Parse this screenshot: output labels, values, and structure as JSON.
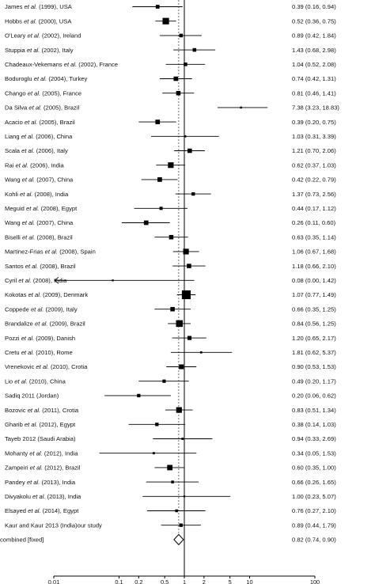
{
  "chart_data": {
    "type": "forest",
    "x_scale": "log",
    "xlim": [
      0.01,
      100
    ],
    "x_ticks": [
      {
        "value": 0.01,
        "label": "0.01"
      },
      {
        "value": 0.1,
        "label": "0.1"
      },
      {
        "value": 0.2,
        "label": "0.2"
      },
      {
        "value": 0.5,
        "label": "0.5"
      },
      {
        "value": 1,
        "label": "1"
      },
      {
        "value": 2,
        "label": "2"
      },
      {
        "value": 5,
        "label": "5"
      },
      {
        "value": 10,
        "label": "10"
      },
      {
        "value": 100,
        "label": "100"
      }
    ],
    "reference_line": 1,
    "studies": [
      {
        "label_parts": [
          "James ",
          "et al.",
          " (1999), USA"
        ],
        "or": 0.39,
        "lo": 0.16,
        "hi": 0.94,
        "text": "0.39 (0.16, 0.94)",
        "weight": 2.2
      },
      {
        "label_parts": [
          "Hobbs ",
          "et al.",
          " (2000), USA"
        ],
        "or": 0.52,
        "lo": 0.36,
        "hi": 0.75,
        "text": "0.52 (0.36, 0.75)",
        "weight": 6.5
      },
      {
        "label_parts": [
          "O'Leary ",
          "et al.",
          " (2002), Ireland"
        ],
        "or": 0.89,
        "lo": 0.42,
        "hi": 1.84,
        "text": "0.89 (0.42, 1.84)",
        "weight": 2.0
      },
      {
        "label_parts": [
          "Stuppia ",
          "et al.",
          " (2002), Italy"
        ],
        "or": 1.43,
        "lo": 0.68,
        "hi": 2.98,
        "text": "1.43 (0.68, 2.98)",
        "weight": 2.0
      },
      {
        "label_parts": [
          "Chadeaux-Vekemans ",
          "et al.",
          " (2002), France"
        ],
        "or": 1.04,
        "lo": 0.52,
        "hi": 2.08,
        "text": "1.04 (0.52, 2.08)",
        "weight": 2.0
      },
      {
        "label_parts": [
          "Boduroglu ",
          "et al.",
          " (2004), Turkey"
        ],
        "or": 0.74,
        "lo": 0.42,
        "hi": 1.31,
        "text": "0.74 (0.42, 1.31)",
        "weight": 3.0
      },
      {
        "label_parts": [
          "Chango ",
          "et al.",
          " (2005), France"
        ],
        "or": 0.81,
        "lo": 0.46,
        "hi": 1.41,
        "text": "0.81 (0.46, 1.41)",
        "weight": 3.0
      },
      {
        "label_parts": [
          "Da Silva ",
          "et al.",
          " (2005), Brazil"
        ],
        "or": 7.38,
        "lo": 3.23,
        "hi": 18.83,
        "text": "7.38 (3.23, 18.83)",
        "weight": 0.6
      },
      {
        "label_parts": [
          "Acacio ",
          "et al.",
          " (2005), Brazil"
        ],
        "or": 0.39,
        "lo": 0.2,
        "hi": 0.75,
        "text": "0.39 (0.20, 0.75)",
        "weight": 3.2
      },
      {
        "label_parts": [
          "Liang ",
          "et al.",
          " (2006), China"
        ],
        "or": 1.03,
        "lo": 0.31,
        "hi": 3.39,
        "text": "1.03 (0.31, 3.39)",
        "weight": 0.7
      },
      {
        "label_parts": [
          "Scala ",
          "et al.",
          " (2006), Italy"
        ],
        "or": 1.21,
        "lo": 0.7,
        "hi": 2.06,
        "text": "1.21 (0.70, 2.06)",
        "weight": 3.0
      },
      {
        "label_parts": [
          "Rai ",
          "et al.",
          " (2006), India"
        ],
        "or": 0.62,
        "lo": 0.37,
        "hi": 1.03,
        "text": "0.62 (0.37, 1.03)",
        "weight": 5.0
      },
      {
        "label_parts": [
          "Wang ",
          "et al.",
          " (2007), China"
        ],
        "or": 0.42,
        "lo": 0.22,
        "hi": 0.79,
        "text": "0.42 (0.22, 0.79)",
        "weight": 3.2
      },
      {
        "label_parts": [
          "Kohli ",
          "et al.",
          " (2008), India"
        ],
        "or": 1.37,
        "lo": 0.73,
        "hi": 2.56,
        "text": "1.37 (0.73, 2.56)",
        "weight": 1.8
      },
      {
        "label_parts": [
          "Meguid ",
          "et al.",
          " (2008), Egypt"
        ],
        "or": 0.44,
        "lo": 0.17,
        "hi": 1.12,
        "text": "0.44 (0.17, 1.12)",
        "weight": 1.6
      },
      {
        "label_parts": [
          "Wang ",
          "et al.",
          " (2007), China"
        ],
        "or": 0.26,
        "lo": 0.11,
        "hi": 0.6,
        "text": "0.26 (0.11, 0.60)",
        "weight": 3.2
      },
      {
        "label_parts": [
          "Biselli ",
          "et al.",
          " (2008), Brazil"
        ],
        "or": 0.63,
        "lo": 0.35,
        "hi": 1.14,
        "text": "0.63 (0.35, 1.14)",
        "weight": 3.0
      },
      {
        "label_parts": [
          "Martinez-Frias ",
          "et al.",
          " (2008), Spain"
        ],
        "or": 1.06,
        "lo": 0.67,
        "hi": 1.68,
        "text": "1.06 (0.67, 1.68)",
        "weight": 5.0
      },
      {
        "label_parts": [
          "Santos ",
          "et al.",
          " (2008), Brazil"
        ],
        "or": 1.18,
        "lo": 0.66,
        "hi": 2.1,
        "text": "1.18 (0.66, 2.10)",
        "weight": 3.0
      },
      {
        "label_parts": [
          "Cyril ",
          "et al.",
          " (2008), India"
        ],
        "or": 0.08,
        "lo": 0.0,
        "hi": 1.42,
        "text": "0.08 (0.00, 1.42)",
        "weight": 0.5,
        "arrow_left": true
      },
      {
        "label_parts": [
          "Kokotas ",
          "et al.",
          " (2009), Denmark"
        ],
        "or": 1.07,
        "lo": 0.77,
        "hi": 1.49,
        "text": "1.07 (0.77, 1.49)",
        "weight": 12.0
      },
      {
        "label_parts": [
          "Coppede ",
          "et al.",
          " (2009), Italy"
        ],
        "or": 0.66,
        "lo": 0.35,
        "hi": 1.25,
        "text": "0.66 (0.35, 1.25)",
        "weight": 3.0
      },
      {
        "label_parts": [
          "Brandalize ",
          "et al.",
          " (2009), Brazil"
        ],
        "or": 0.84,
        "lo": 0.56,
        "hi": 1.25,
        "text": "0.84 (0.56, 1.25)",
        "weight": 7.0
      },
      {
        "label_parts": [
          "Pozzi ",
          "et al.",
          " (2009), Danish"
        ],
        "or": 1.2,
        "lo": 0.65,
        "hi": 2.17,
        "text": "1.20 (0.65, 2.17)",
        "weight": 2.6
      },
      {
        "label_parts": [
          "Cretu ",
          "et al.",
          " (2010), Rome"
        ],
        "or": 1.81,
        "lo": 0.62,
        "hi": 5.37,
        "text": "1.81 (0.62, 5.37)",
        "weight": 0.7
      },
      {
        "label_parts": [
          "Vrenekovic ",
          "et al.",
          " (2010), Crotia"
        ],
        "or": 0.9,
        "lo": 0.53,
        "hi": 1.53,
        "text": "0.90 (0.53, 1.53)",
        "weight": 3.5
      },
      {
        "label_parts": [
          "Lio ",
          "et al.",
          " (2010), China"
        ],
        "or": 0.49,
        "lo": 0.2,
        "hi": 1.17,
        "text": "0.49 (0.20, 1.17)",
        "weight": 1.7
      },
      {
        "label_parts": [
          "Sadiq 2011 (Jordan)"
        ],
        "or": 0.2,
        "lo": 0.06,
        "hi": 0.62,
        "text": "0.20 (0.06, 0.62)",
        "weight": 1.8
      },
      {
        "label_parts": [
          "Bozovic ",
          "et al.",
          " (2011), Crotia"
        ],
        "or": 0.83,
        "lo": 0.51,
        "hi": 1.34,
        "text": "0.83 (0.51, 1.34)",
        "weight": 5.0
      },
      {
        "label_parts": [
          "Gharib ",
          "et al.",
          " (2012), Egypt"
        ],
        "or": 0.38,
        "lo": 0.14,
        "hi": 1.03,
        "text": "0.38 (0.14, 1.03)",
        "weight": 1.8
      },
      {
        "label_parts": [
          "Tayeb 2012 (Saudi Arabia)"
        ],
        "or": 0.94,
        "lo": 0.33,
        "hi": 2.69,
        "text": "0.94 (0.33, 2.69)",
        "weight": 0.8
      },
      {
        "label_parts": [
          "Mohanty ",
          "et al.",
          " (2012), India"
        ],
        "or": 0.34,
        "lo": 0.05,
        "hi": 1.53,
        "text": "0.34 (0.05, 1.53)",
        "weight": 0.8
      },
      {
        "label_parts": [
          "Zampeiri ",
          "et al.",
          " (2012), Brazil"
        ],
        "or": 0.6,
        "lo": 0.35,
        "hi": 1.0,
        "text": "0.60 (0.35, 1.00)",
        "weight": 4.5
      },
      {
        "label_parts": [
          "Pandey ",
          "et al.",
          " (2013), India"
        ],
        "or": 0.66,
        "lo": 0.26,
        "hi": 1.65,
        "text": "0.66 (0.26, 1.65)",
        "weight": 1.2
      },
      {
        "label_parts": [
          "Divyakolu ",
          "et al.",
          " (2013), India"
        ],
        "or": 1.0,
        "lo": 0.23,
        "hi": 5.07,
        "text": "1.00 (0.23, 5.07)",
        "weight": 0.5
      },
      {
        "label_parts": [
          "Elsayed ",
          "et al.",
          " (2014), Egypt"
        ],
        "or": 0.76,
        "lo": 0.27,
        "hi": 2.1,
        "text": "0.76 (0.27, 2.10)",
        "weight": 1.2
      },
      {
        "label_parts": [
          "Kaur and Kaur 2013 (India)our study"
        ],
        "or": 0.89,
        "lo": 0.44,
        "hi": 1.79,
        "text": "0.89 (0.44, 1.79)",
        "weight": 1.8
      }
    ],
    "combined": {
      "label": "combined [fixed]",
      "or": 0.82,
      "lo": 0.74,
      "hi": 0.9,
      "text": "0.82 (0.74, 0.90)"
    }
  }
}
